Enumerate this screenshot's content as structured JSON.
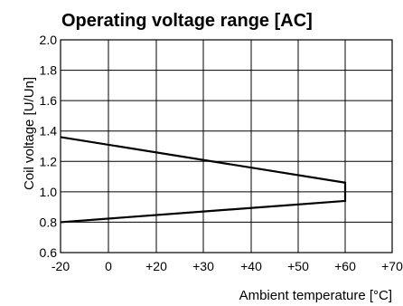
{
  "chart_data": {
    "type": "line",
    "title": "Operating voltage range [AC]",
    "xlabel": "Ambient temperature [°C]",
    "ylabel": "Coil voltage [U/Un]",
    "x_tick_labels": [
      "-20",
      "0",
      "+20",
      "+30",
      "+40",
      "+50",
      "+60",
      "+70"
    ],
    "y_tick_labels": [
      "0.6",
      "0.8",
      "1.0",
      "1.2",
      "1.4",
      "1.6",
      "1.8",
      "2.0"
    ],
    "y_ticks": [
      0.6,
      0.8,
      1.0,
      1.2,
      1.4,
      1.6,
      1.8,
      2.0
    ],
    "ylim": [
      0.6,
      2.0
    ],
    "grid": true,
    "series": [
      {
        "x": [
          "-20",
          "+60",
          "+60",
          "-20"
        ],
        "values": [
          1.36,
          1.06,
          0.94,
          0.8
        ]
      }
    ]
  }
}
